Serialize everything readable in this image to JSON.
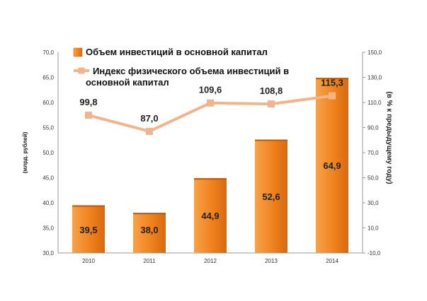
{
  "chart_data": {
    "type": "bar",
    "categories": [
      "2010",
      "2011",
      "2012",
      "2013",
      "2014"
    ],
    "series": [
      {
        "name": "Объем инвестиций в основной капитал",
        "type": "bar",
        "axis": "left",
        "values": [
          39.5,
          38.0,
          44.9,
          52.6,
          64.9
        ],
        "labels": [
          "39,5",
          "38,0",
          "44,9",
          "52,6",
          "64,9"
        ],
        "color": "#F0821E"
      },
      {
        "name": "Индекс физического объема инвестиций в основной капитал",
        "type": "line",
        "axis": "right",
        "values": [
          99.8,
          87.0,
          109.6,
          108.8,
          115.3
        ],
        "labels": [
          "99,8",
          "87,0",
          "109,6",
          "108,8",
          "115,3"
        ],
        "color": "#F2B48C"
      }
    ],
    "ylabel": "(млрд. рублей)",
    "ylabel_right": "(в % к предыдущему году)",
    "ylim": [
      30,
      70
    ],
    "ylim_right": [
      -10,
      150
    ],
    "yticks_left": [
      "30,0",
      "35,0",
      "40,0",
      "45,0",
      "50,0",
      "55,0",
      "60,0",
      "65,0",
      "70,0"
    ],
    "yticks_right": [
      "-10,0",
      "10,0",
      "30,0",
      "50,0",
      "70,0",
      "90,0",
      "110,0",
      "130,0",
      "150,0"
    ],
    "grid": false,
    "legend": "top-left"
  }
}
